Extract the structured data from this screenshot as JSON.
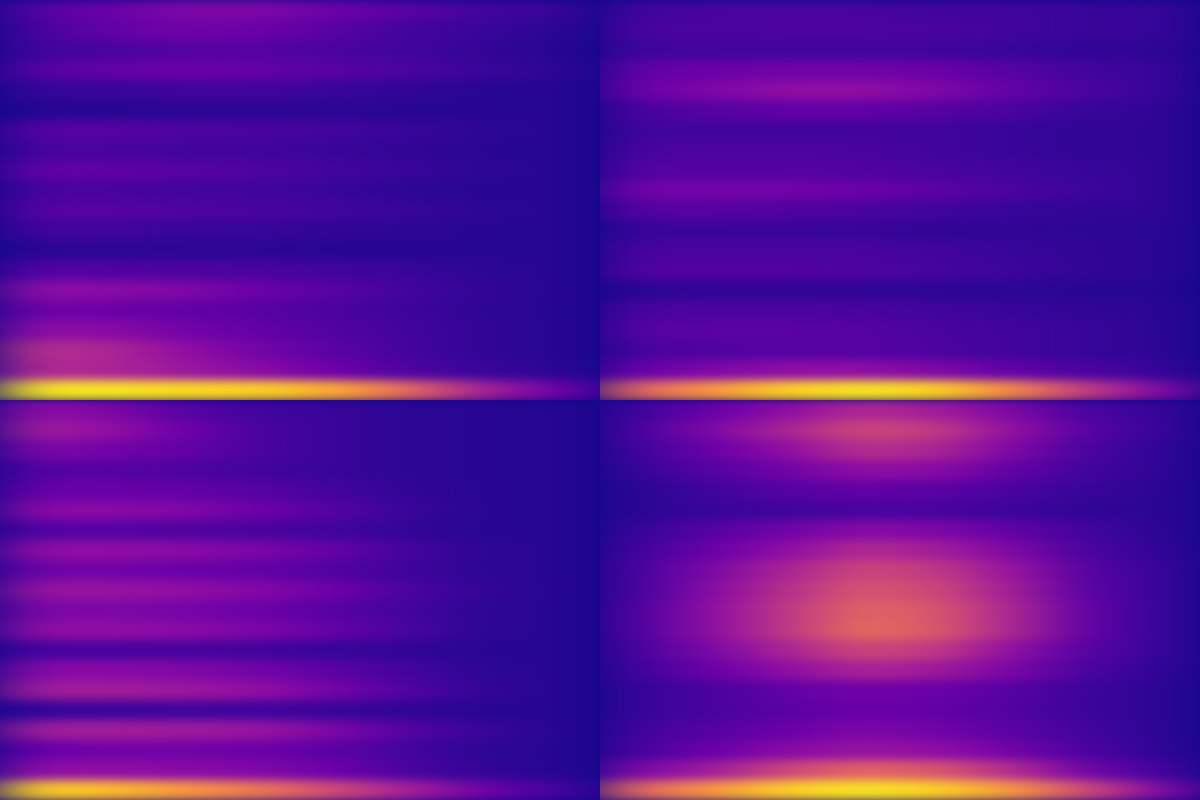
{
  "chart_data": [
    {
      "type": "heatmap",
      "tick_labels": false,
      "zlim": [
        0,
        1
      ],
      "cells": [
        [
          0.15,
          0.2,
          0.25,
          0.25,
          0.2,
          0.15,
          0.1,
          0.08
        ],
        [
          0.12,
          0.18,
          0.22,
          0.2,
          0.15,
          0.1,
          0.08,
          0.06
        ],
        [
          0.1,
          0.12,
          0.15,
          0.15,
          0.12,
          0.1,
          0.07,
          0.05
        ],
        [
          0.15,
          0.18,
          0.2,
          0.18,
          0.15,
          0.12,
          0.08,
          0.06
        ],
        [
          0.08,
          0.08,
          0.1,
          0.1,
          0.08,
          0.07,
          0.05,
          0.05
        ],
        [
          0.05,
          0.05,
          0.06,
          0.06,
          0.06,
          0.05,
          0.05,
          0.05
        ],
        [
          0.15,
          0.15,
          0.13,
          0.12,
          0.1,
          0.08,
          0.06,
          0.05
        ],
        [
          0.12,
          0.12,
          0.1,
          0.1,
          0.08,
          0.07,
          0.05,
          0.05
        ],
        [
          0.18,
          0.17,
          0.15,
          0.13,
          0.1,
          0.08,
          0.06,
          0.05
        ],
        [
          0.12,
          0.12,
          0.1,
          0.1,
          0.08,
          0.06,
          0.05,
          0.05
        ],
        [
          0.15,
          0.15,
          0.13,
          0.12,
          0.1,
          0.08,
          0.06,
          0.05
        ],
        [
          0.1,
          0.1,
          0.08,
          0.08,
          0.07,
          0.06,
          0.05,
          0.05
        ],
        [
          0.06,
          0.06,
          0.06,
          0.06,
          0.05,
          0.05,
          0.05,
          0.05
        ],
        [
          0.15,
          0.14,
          0.13,
          0.12,
          0.1,
          0.08,
          0.06,
          0.05
        ],
        [
          0.3,
          0.28,
          0.25,
          0.2,
          0.15,
          0.1,
          0.07,
          0.05
        ],
        [
          0.22,
          0.2,
          0.18,
          0.15,
          0.12,
          0.09,
          0.06,
          0.05
        ],
        [
          0.3,
          0.28,
          0.22,
          0.18,
          0.14,
          0.1,
          0.07,
          0.05
        ],
        [
          0.42,
          0.38,
          0.3,
          0.22,
          0.16,
          0.1,
          0.07,
          0.05
        ],
        [
          0.4,
          0.38,
          0.33,
          0.28,
          0.2,
          0.13,
          0.08,
          0.06
        ],
        [
          0.95,
          0.95,
          0.92,
          0.9,
          0.8,
          0.6,
          0.35,
          0.2
        ]
      ]
    },
    {
      "type": "heatmap",
      "tick_labels": false,
      "zlim": [
        0,
        1
      ],
      "cells": [
        [
          0.1,
          0.12,
          0.12,
          0.12,
          0.1,
          0.1,
          0.08,
          0.08
        ],
        [
          0.12,
          0.12,
          0.13,
          0.13,
          0.12,
          0.1,
          0.08,
          0.08
        ],
        [
          0.1,
          0.1,
          0.1,
          0.1,
          0.1,
          0.08,
          0.07,
          0.07
        ],
        [
          0.18,
          0.2,
          0.22,
          0.22,
          0.2,
          0.15,
          0.1,
          0.08
        ],
        [
          0.2,
          0.25,
          0.3,
          0.3,
          0.25,
          0.18,
          0.12,
          0.08
        ],
        [
          0.12,
          0.15,
          0.18,
          0.18,
          0.15,
          0.12,
          0.08,
          0.07
        ],
        [
          0.1,
          0.1,
          0.1,
          0.1,
          0.1,
          0.08,
          0.07,
          0.07
        ],
        [
          0.12,
          0.13,
          0.13,
          0.12,
          0.1,
          0.08,
          0.07,
          0.07
        ],
        [
          0.15,
          0.15,
          0.15,
          0.14,
          0.12,
          0.1,
          0.08,
          0.07
        ],
        [
          0.22,
          0.22,
          0.22,
          0.2,
          0.16,
          0.12,
          0.09,
          0.07
        ],
        [
          0.15,
          0.15,
          0.14,
          0.12,
          0.1,
          0.08,
          0.07,
          0.07
        ],
        [
          0.08,
          0.08,
          0.08,
          0.08,
          0.07,
          0.07,
          0.06,
          0.06
        ],
        [
          0.12,
          0.12,
          0.12,
          0.12,
          0.1,
          0.08,
          0.07,
          0.06
        ],
        [
          0.14,
          0.14,
          0.14,
          0.13,
          0.11,
          0.09,
          0.07,
          0.06
        ],
        [
          0.06,
          0.07,
          0.07,
          0.07,
          0.06,
          0.06,
          0.05,
          0.05
        ],
        [
          0.12,
          0.13,
          0.13,
          0.12,
          0.1,
          0.08,
          0.07,
          0.06
        ],
        [
          0.15,
          0.16,
          0.16,
          0.15,
          0.12,
          0.1,
          0.08,
          0.06
        ],
        [
          0.12,
          0.14,
          0.15,
          0.15,
          0.13,
          0.1,
          0.08,
          0.06
        ],
        [
          0.2,
          0.25,
          0.3,
          0.3,
          0.25,
          0.18,
          0.12,
          0.08
        ],
        [
          0.6,
          0.75,
          0.9,
          0.95,
          0.9,
          0.7,
          0.45,
          0.25
        ]
      ]
    },
    {
      "type": "heatmap",
      "tick_labels": false,
      "zlim": [
        0,
        1
      ],
      "cells": [
        [
          0.3,
          0.25,
          0.15,
          0.1,
          0.08,
          0.06,
          0.05,
          0.05
        ],
        [
          0.35,
          0.3,
          0.2,
          0.12,
          0.08,
          0.06,
          0.05,
          0.05
        ],
        [
          0.25,
          0.22,
          0.18,
          0.12,
          0.08,
          0.06,
          0.05,
          0.05
        ],
        [
          0.15,
          0.15,
          0.13,
          0.1,
          0.08,
          0.06,
          0.05,
          0.05
        ],
        [
          0.2,
          0.2,
          0.18,
          0.15,
          0.1,
          0.07,
          0.05,
          0.05
        ],
        [
          0.28,
          0.28,
          0.25,
          0.2,
          0.14,
          0.08,
          0.05,
          0.05
        ],
        [
          0.15,
          0.15,
          0.14,
          0.12,
          0.1,
          0.07,
          0.05,
          0.05
        ],
        [
          0.3,
          0.3,
          0.28,
          0.24,
          0.18,
          0.1,
          0.06,
          0.05
        ],
        [
          0.22,
          0.22,
          0.2,
          0.18,
          0.14,
          0.09,
          0.06,
          0.05
        ],
        [
          0.32,
          0.32,
          0.3,
          0.26,
          0.2,
          0.12,
          0.07,
          0.05
        ],
        [
          0.25,
          0.25,
          0.23,
          0.2,
          0.15,
          0.1,
          0.06,
          0.05
        ],
        [
          0.3,
          0.3,
          0.28,
          0.24,
          0.18,
          0.11,
          0.06,
          0.05
        ],
        [
          0.12,
          0.12,
          0.12,
          0.1,
          0.08,
          0.07,
          0.05,
          0.05
        ],
        [
          0.28,
          0.28,
          0.26,
          0.22,
          0.16,
          0.1,
          0.06,
          0.05
        ],
        [
          0.35,
          0.35,
          0.33,
          0.3,
          0.22,
          0.13,
          0.07,
          0.05
        ],
        [
          0.08,
          0.09,
          0.1,
          0.1,
          0.08,
          0.07,
          0.05,
          0.05
        ],
        [
          0.35,
          0.35,
          0.34,
          0.32,
          0.24,
          0.14,
          0.08,
          0.05
        ],
        [
          0.2,
          0.22,
          0.22,
          0.2,
          0.16,
          0.1,
          0.06,
          0.05
        ],
        [
          0.3,
          0.3,
          0.28,
          0.26,
          0.2,
          0.12,
          0.07,
          0.05
        ],
        [
          0.9,
          0.85,
          0.75,
          0.65,
          0.5,
          0.35,
          0.2,
          0.1
        ]
      ]
    },
    {
      "type": "heatmap",
      "tick_labels": false,
      "zlim": [
        0,
        1
      ],
      "cells": [
        [
          0.1,
          0.2,
          0.3,
          0.4,
          0.35,
          0.25,
          0.12,
          0.08
        ],
        [
          0.12,
          0.25,
          0.38,
          0.5,
          0.45,
          0.3,
          0.15,
          0.08
        ],
        [
          0.1,
          0.2,
          0.3,
          0.42,
          0.38,
          0.25,
          0.12,
          0.07
        ],
        [
          0.08,
          0.15,
          0.22,
          0.3,
          0.28,
          0.18,
          0.1,
          0.07
        ],
        [
          0.06,
          0.1,
          0.15,
          0.18,
          0.16,
          0.12,
          0.08,
          0.06
        ],
        [
          0.06,
          0.08,
          0.1,
          0.12,
          0.12,
          0.09,
          0.07,
          0.06
        ],
        [
          0.08,
          0.15,
          0.22,
          0.28,
          0.25,
          0.18,
          0.1,
          0.06
        ],
        [
          0.1,
          0.2,
          0.3,
          0.4,
          0.36,
          0.25,
          0.12,
          0.07
        ],
        [
          0.12,
          0.25,
          0.38,
          0.5,
          0.45,
          0.32,
          0.15,
          0.08
        ],
        [
          0.12,
          0.28,
          0.42,
          0.55,
          0.5,
          0.35,
          0.16,
          0.08
        ],
        [
          0.14,
          0.3,
          0.45,
          0.6,
          0.55,
          0.38,
          0.18,
          0.08
        ],
        [
          0.14,
          0.3,
          0.45,
          0.62,
          0.56,
          0.38,
          0.18,
          0.08
        ],
        [
          0.12,
          0.25,
          0.38,
          0.5,
          0.45,
          0.3,
          0.15,
          0.08
        ],
        [
          0.1,
          0.2,
          0.3,
          0.38,
          0.34,
          0.24,
          0.12,
          0.07
        ],
        [
          0.08,
          0.12,
          0.18,
          0.22,
          0.2,
          0.15,
          0.09,
          0.06
        ],
        [
          0.08,
          0.12,
          0.16,
          0.2,
          0.18,
          0.14,
          0.09,
          0.06
        ],
        [
          0.1,
          0.15,
          0.2,
          0.25,
          0.22,
          0.16,
          0.1,
          0.06
        ],
        [
          0.12,
          0.2,
          0.28,
          0.32,
          0.3,
          0.22,
          0.12,
          0.07
        ],
        [
          0.25,
          0.35,
          0.5,
          0.6,
          0.55,
          0.4,
          0.22,
          0.1
        ],
        [
          0.6,
          0.75,
          0.9,
          0.95,
          0.9,
          0.75,
          0.5,
          0.25
        ]
      ]
    }
  ]
}
